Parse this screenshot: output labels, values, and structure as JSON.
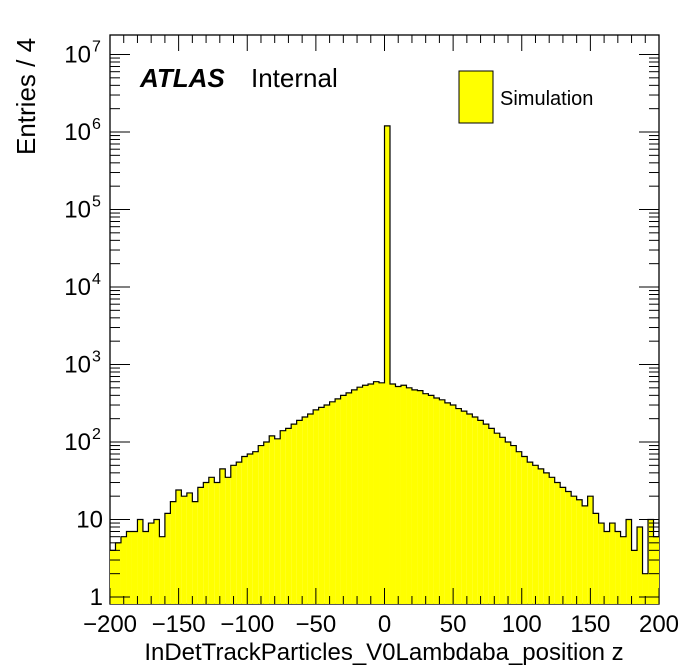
{
  "chart_data": {
    "type": "histogram",
    "title": "",
    "xlabel": "InDetTrackParticles_V0Lambdaba_position z",
    "ylabel": "Entries / 4",
    "xlim": [
      -200,
      200
    ],
    "ylim": [
      0.8,
      15000000
    ],
    "y_scale": "log",
    "bin_width": 4,
    "x_ticks": [
      "−200",
      "−150",
      "−100",
      "−50",
      "0",
      "50",
      "100",
      "150",
      "200"
    ],
    "y_ticks": [
      {
        "base": "1",
        "exp": ""
      },
      {
        "base": "10",
        "exp": ""
      },
      {
        "base": "10",
        "exp": "2"
      },
      {
        "base": "10",
        "exp": "3"
      },
      {
        "base": "10",
        "exp": "4"
      },
      {
        "base": "10",
        "exp": "5"
      },
      {
        "base": "10",
        "exp": "6"
      },
      {
        "base": "10",
        "exp": "7"
      }
    ],
    "atlas_label": "ATLAS",
    "atlas_sublabel": "Internal",
    "legend": {
      "position": "top-right",
      "entries": [
        {
          "label": "Simulation",
          "color": "#ffff00"
        }
      ]
    },
    "fill_color": "#ffff00",
    "line_color": "#000000",
    "series": [
      {
        "bin_lows": [
          -200,
          -196,
          -192,
          -188,
          -184,
          -180,
          -176,
          -172,
          -168,
          -164,
          -160,
          -156,
          -152,
          -148,
          -144,
          -140,
          -136,
          -132,
          -128,
          -124,
          -120,
          -116,
          -112,
          -108,
          -104,
          -100,
          -96,
          -92,
          -88,
          -84,
          -80,
          -76,
          -72,
          -68,
          -64,
          -60,
          -56,
          -52,
          -48,
          -44,
          -40,
          -36,
          -32,
          -28,
          -24,
          -20,
          -16,
          -12,
          -8,
          -4,
          0,
          4,
          8,
          12,
          16,
          20,
          24,
          28,
          32,
          36,
          40,
          44,
          48,
          52,
          56,
          60,
          64,
          68,
          72,
          76,
          80,
          84,
          88,
          92,
          96,
          100,
          104,
          108,
          112,
          116,
          120,
          124,
          128,
          132,
          136,
          140,
          144,
          148,
          152,
          156,
          160,
          164,
          168,
          172,
          176,
          180,
          184,
          188,
          192,
          196
        ],
        "values": [
          4,
          5,
          6,
          7,
          7,
          10,
          7,
          9,
          10,
          6,
          12,
          17,
          24,
          20,
          22,
          17,
          26,
          30,
          35,
          30,
          45,
          35,
          50,
          55,
          65,
          70,
          75,
          90,
          100,
          120,
          110,
          140,
          150,
          170,
          190,
          210,
          230,
          260,
          280,
          300,
          330,
          360,
          400,
          430,
          470,
          510,
          540,
          560,
          600,
          580,
          1200000,
          560,
          520,
          540,
          500,
          470,
          460,
          420,
          400,
          370,
          350,
          320,
          300,
          270,
          250,
          230,
          210,
          190,
          170,
          150,
          130,
          115,
          100,
          90,
          75,
          65,
          55,
          50,
          45,
          40,
          35,
          30,
          26,
          23,
          20,
          18,
          15,
          20,
          12,
          9,
          7,
          9,
          7,
          6,
          10,
          4,
          8,
          2,
          10,
          6
        ]
      }
    ]
  }
}
